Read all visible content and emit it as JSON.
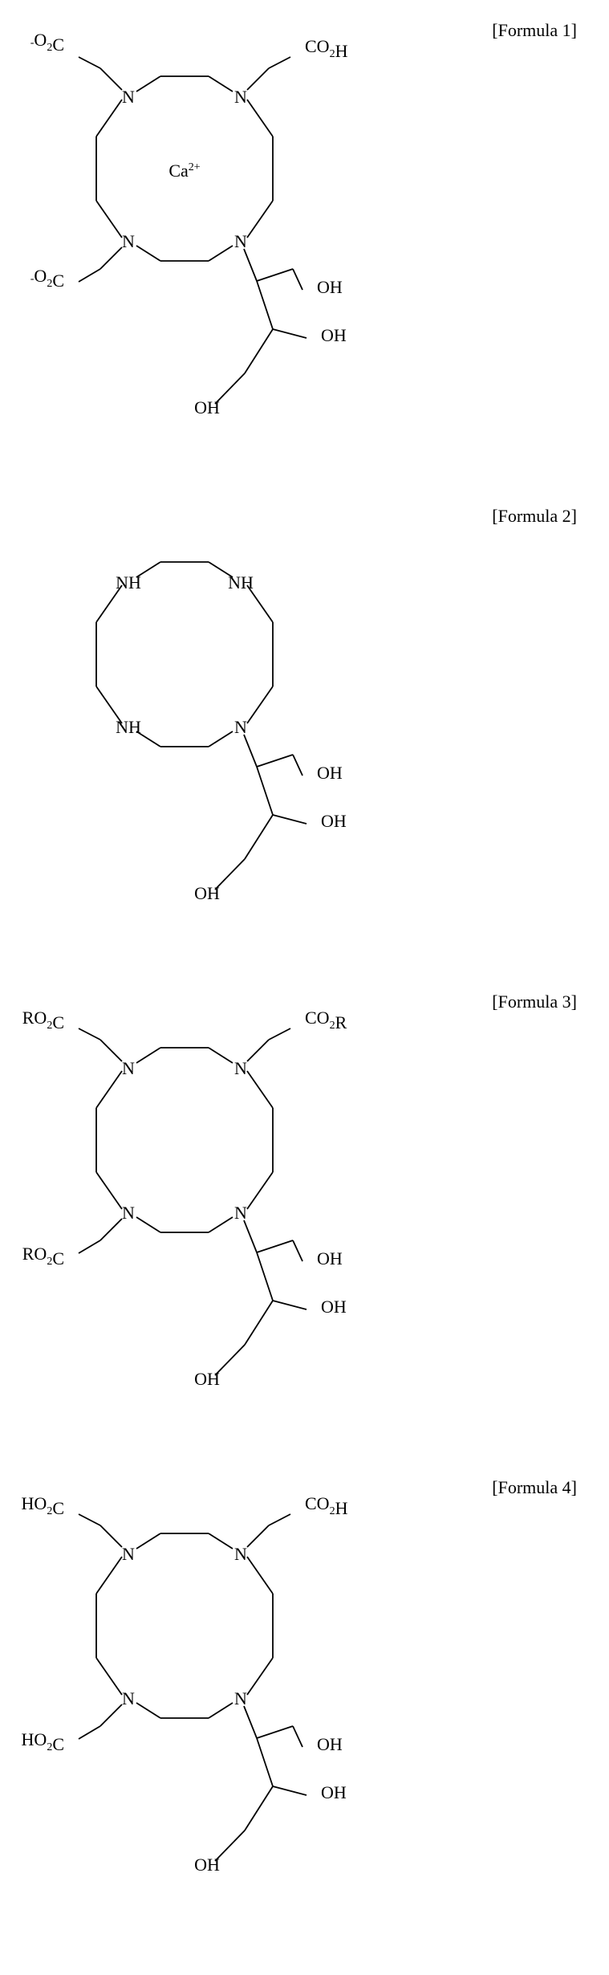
{
  "formulas": [
    {
      "label": "[Formula 1]",
      "top_left_group": {
        "prefix_sup": "-",
        "base": "O",
        "sub": "2",
        "suffix": "C"
      },
      "top_right_group": {
        "base": "CO",
        "sub": "2",
        "suffix": "H"
      },
      "bottom_left_group": {
        "prefix_sup": "-",
        "base": "O",
        "sub": "2",
        "suffix": "C"
      },
      "center_ion": {
        "base": "Ca",
        "sup": "2+"
      },
      "triol": true,
      "oh_label": "OH",
      "n_label": "N",
      "nh_upper": false
    },
    {
      "label": "[Formula 2]",
      "top_left_group": null,
      "top_right_group": null,
      "bottom_left_group": null,
      "center_ion": null,
      "triol": true,
      "oh_label": "OH",
      "n_label": "N",
      "nh_upper": true
    },
    {
      "label": "[Formula 3]",
      "top_left_group": {
        "base": "RO",
        "sub": "2",
        "suffix": "C"
      },
      "top_right_group": {
        "base": "CO",
        "sub": "2",
        "suffix": "R"
      },
      "bottom_left_group": {
        "base": "RO",
        "sub": "2",
        "suffix": "C"
      },
      "center_ion": null,
      "triol": true,
      "oh_label": "OH",
      "n_label": "N",
      "nh_upper": false
    },
    {
      "label": "[Formula 4]",
      "top_left_group": {
        "base": "HO",
        "sub": "2",
        "suffix": "C"
      },
      "top_right_group": {
        "base": "CO",
        "sub": "2",
        "suffix": "H"
      },
      "bottom_left_group": {
        "base": "HO",
        "sub": "2",
        "suffix": "C"
      },
      "center_ion": null,
      "triol": true,
      "oh_label": "OH",
      "n_label": "N",
      "nh_upper": false
    }
  ],
  "layout": {
    "structure_width": 420,
    "svg_viewbox": "0 0 420 520",
    "colors": {
      "stroke": "#000000",
      "text": "#000000",
      "background": "#ffffff"
    },
    "stroke_width": 1.8,
    "font_size": 22,
    "sub_font_size": 14
  }
}
